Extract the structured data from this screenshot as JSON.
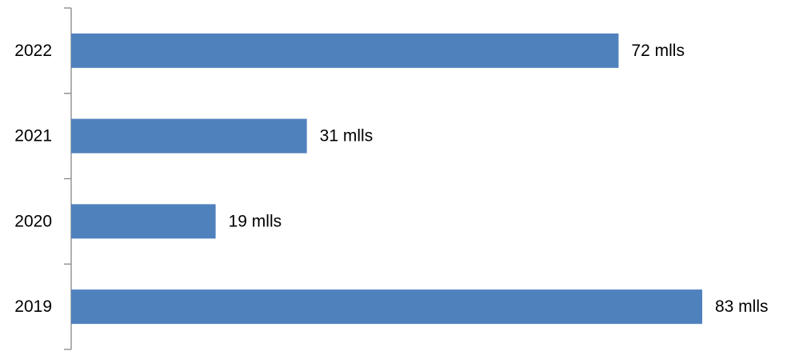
{
  "chart_data": {
    "type": "bar",
    "orientation": "horizontal",
    "categories": [
      "2022",
      "2021",
      "2020",
      "2019"
    ],
    "values": [
      72,
      31,
      19,
      83
    ],
    "data_labels": [
      "72 mlls",
      "31 mlls",
      "19 mlls",
      "83 mlls"
    ],
    "unit": "mlls",
    "title": "",
    "xlabel": "",
    "ylabel": "",
    "xlim": [
      0,
      84
    ],
    "grid": false,
    "legend": "none",
    "bar_color": "#4f81bd",
    "axis_color": "#868686"
  }
}
